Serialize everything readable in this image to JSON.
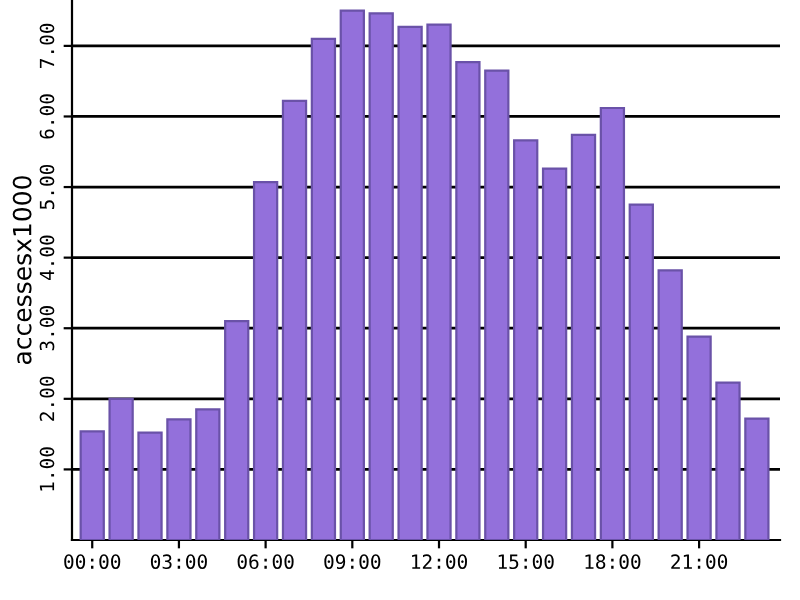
{
  "chart_data": {
    "type": "bar",
    "ylabel": "accessesx1000",
    "categories": [
      "00:00",
      null,
      null,
      "03:00",
      null,
      null,
      "06:00",
      null,
      null,
      "09:00",
      null,
      null,
      "12:00",
      null,
      null,
      "15:00",
      null,
      null,
      "18:00",
      null,
      null,
      "21:00",
      null,
      null
    ],
    "values": [
      1.54,
      2.0,
      1.52,
      1.71,
      1.85,
      3.1,
      5.07,
      6.22,
      7.1,
      7.5,
      7.46,
      7.27,
      7.3,
      6.77,
      6.65,
      5.66,
      5.26,
      5.74,
      6.12,
      4.75,
      3.82,
      2.88,
      2.23,
      1.72
    ],
    "color": "#9370db",
    "ylim": [
      0,
      7.65
    ],
    "yticks": [
      {
        "value": 1,
        "label": "1.00"
      },
      {
        "value": 2,
        "label": "2.00"
      },
      {
        "value": 3,
        "label": "3.00"
      },
      {
        "value": 4,
        "label": "4.00"
      },
      {
        "value": 5,
        "label": "5.00"
      },
      {
        "value": 6,
        "label": "6.00"
      },
      {
        "value": 7,
        "label": "7.00"
      }
    ],
    "grid": "y",
    "legend": false
  }
}
